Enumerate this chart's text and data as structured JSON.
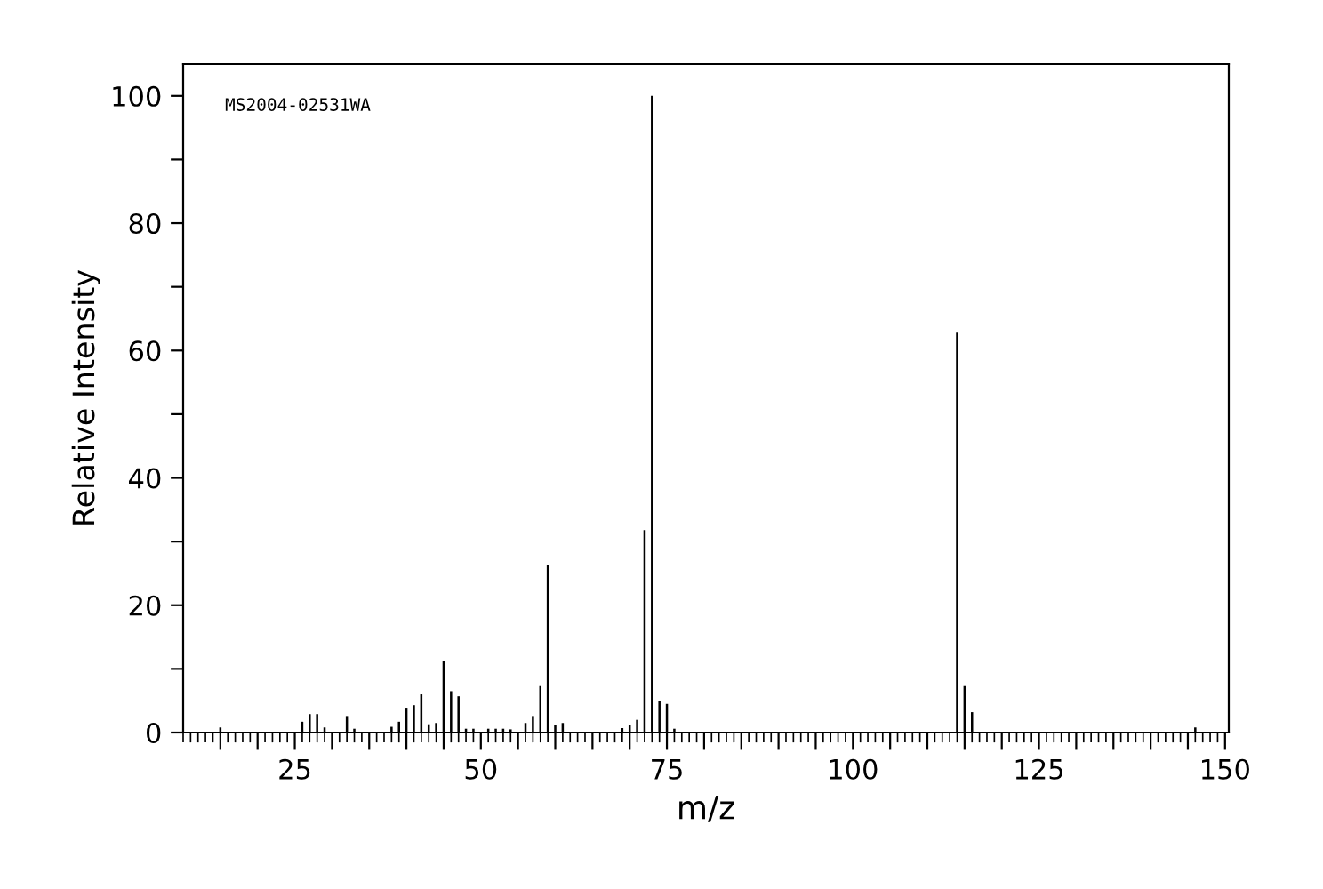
{
  "chart_data": {
    "type": "bar",
    "xlabel": "m/z",
    "ylabel": "Relative Intensity",
    "annotations": [
      "MS2004-02531WA"
    ],
    "x": [
      15,
      26,
      27,
      28,
      29,
      32,
      33,
      38,
      39,
      40,
      41,
      42,
      43,
      44,
      45,
      46,
      47,
      48,
      49,
      51,
      52,
      53,
      54,
      56,
      57,
      58,
      59,
      60,
      61,
      69,
      70,
      71,
      72,
      73,
      74,
      75,
      76,
      114,
      115,
      116,
      146
    ],
    "series": [
      {
        "color": "#000000",
        "values": [
          0.8,
          1.7,
          2.9,
          2.9,
          0.8,
          2.6,
          0.6,
          0.9,
          1.7,
          3.9,
          4.3,
          6.0,
          1.3,
          1.5,
          11.2,
          6.5,
          5.7,
          0.6,
          0.6,
          0.6,
          0.6,
          0.6,
          0.5,
          1.5,
          2.6,
          7.3,
          26.3,
          1.2,
          1.5,
          0.7,
          1.2,
          2.0,
          31.8,
          100,
          5.0,
          4.5,
          0.6,
          62.8,
          7.3,
          3.2,
          0.8
        ]
      }
    ],
    "xlim": [
      10,
      150.5
    ],
    "ylim": [
      0,
      105
    ],
    "xticks": [
      {
        "value": 15,
        "label": null
      },
      {
        "value": 20,
        "label": null
      },
      25,
      {
        "value": 30,
        "label": null
      },
      {
        "value": 35,
        "label": null
      },
      {
        "value": 40,
        "label": null
      },
      {
        "value": 45,
        "label": null
      },
      50,
      {
        "value": 55,
        "label": null
      },
      {
        "value": 60,
        "label": null
      },
      {
        "value": 65,
        "label": null
      },
      {
        "value": 70,
        "label": null
      },
      75,
      {
        "value": 80,
        "label": null
      },
      {
        "value": 85,
        "label": null
      },
      {
        "value": 90,
        "label": null
      },
      {
        "value": 95,
        "label": null
      },
      100,
      {
        "value": 105,
        "label": null
      },
      {
        "value": 110,
        "label": null
      },
      {
        "value": 115,
        "label": null
      },
      {
        "value": 120,
        "label": null
      },
      125,
      {
        "value": 130,
        "label": null
      },
      {
        "value": 135,
        "label": null
      },
      {
        "value": 140,
        "label": null
      },
      {
        "value": 145,
        "label": null
      },
      150
    ],
    "yticks": [
      0,
      {
        "value": 10,
        "label": null
      },
      20,
      {
        "value": 30,
        "label": null
      },
      40,
      {
        "value": 50,
        "label": null
      },
      60,
      {
        "value": 70,
        "label": null
      },
      80,
      {
        "value": 90,
        "label": null
      },
      100
    ],
    "grid": false,
    "legend": false
  }
}
